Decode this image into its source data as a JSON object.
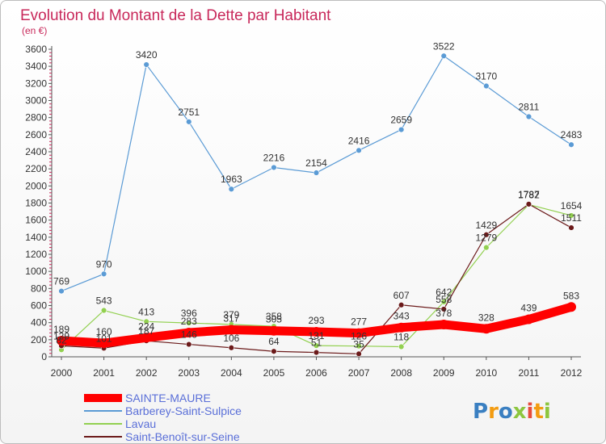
{
  "chart_data": {
    "type": "line",
    "title": "Evolution du Montant de la Dette par Habitant",
    "subtitle": "(en €)",
    "xlabel": "",
    "ylabel": "",
    "ylim": [
      0,
      3600
    ],
    "yticks": [
      0,
      200,
      400,
      600,
      800,
      1000,
      1200,
      1400,
      1600,
      1800,
      2000,
      2200,
      2400,
      2600,
      2800,
      3000,
      3200,
      3400,
      3600
    ],
    "categories": [
      "2000",
      "2001",
      "2002",
      "2003",
      "2004",
      "2005",
      "2006",
      "2007",
      "2008",
      "2009",
      "2010",
      "2011",
      "2012"
    ],
    "grid": false,
    "legend_position": "bottom-left",
    "series": [
      {
        "name": "Barberey-Saint-Sulpice",
        "color": "#5b9bd5",
        "values": [
          769,
          970,
          3420,
          2751,
          1963,
          2216,
          2154,
          2416,
          2659,
          3522,
          3170,
          2811,
          2483
        ]
      },
      {
        "name": "Lavau",
        "color": "#92d050",
        "values": [
          82,
          543,
          413,
          396,
          379,
          358,
          131,
          126,
          118,
          642,
          1279,
          1782,
          1654
        ]
      },
      {
        "name": "Saint-Benoît-sur-Seine",
        "color": "#6b1a1a",
        "values": [
          129,
          101,
          187,
          146,
          106,
          64,
          51,
          35,
          607,
          558,
          1429,
          1787,
          1511
        ]
      },
      {
        "name": "SAINTE-MAURE",
        "color": "#ff0000",
        "values": [
          189,
          160,
          224,
          283,
          317,
          305,
          293,
          277,
          343,
          378,
          328,
          439,
          583
        ]
      }
    ],
    "legend": [
      "SAINTE-MAURE",
      "Barberey-Saint-Sulpice",
      "Lavau",
      "Saint-Benoît-sur-Seine"
    ]
  },
  "logo": {
    "text": "Proxiti",
    "letter_colors": [
      "#3a7fc1",
      "#f39c12",
      "#3a7fc1",
      "#8dc63f",
      "#e74c3c",
      "#f39c12",
      "#8dc63f"
    ]
  }
}
